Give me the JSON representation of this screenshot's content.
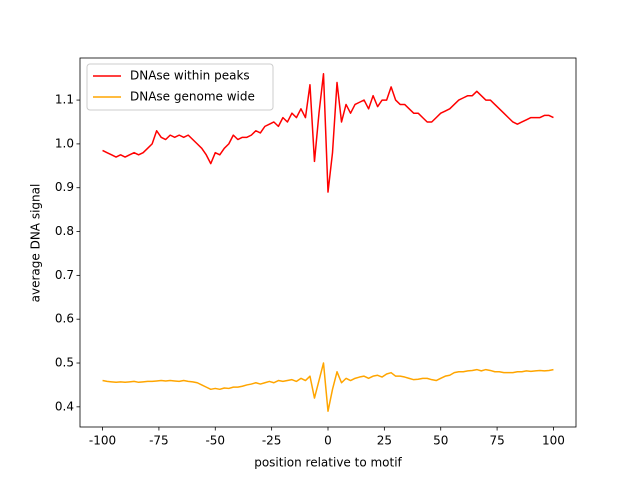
{
  "chart_data": {
    "type": "line",
    "xlabel": "position relative to motif",
    "ylabel": "average DNA signal",
    "x": [
      -100,
      -98,
      -96,
      -94,
      -92,
      -90,
      -88,
      -86,
      -84,
      -82,
      -80,
      -78,
      -76,
      -74,
      -72,
      -70,
      -68,
      -66,
      -64,
      -62,
      -60,
      -58,
      -56,
      -54,
      -52,
      -50,
      -48,
      -46,
      -44,
      -42,
      -40,
      -38,
      -36,
      -34,
      -32,
      -30,
      -28,
      -26,
      -24,
      -22,
      -20,
      -18,
      -16,
      -14,
      -12,
      -10,
      -8,
      -6,
      -4,
      -2,
      0,
      2,
      4,
      6,
      8,
      10,
      12,
      14,
      16,
      18,
      20,
      22,
      24,
      26,
      28,
      30,
      32,
      34,
      36,
      38,
      40,
      42,
      44,
      46,
      48,
      50,
      52,
      54,
      56,
      58,
      60,
      62,
      64,
      66,
      68,
      70,
      72,
      74,
      76,
      78,
      80,
      82,
      84,
      86,
      88,
      90,
      92,
      94,
      96,
      98,
      100
    ],
    "series": [
      {
        "name": "DNAse within peaks",
        "color": "#ff0000",
        "values": [
          0.985,
          0.98,
          0.975,
          0.97,
          0.975,
          0.97,
          0.975,
          0.98,
          0.975,
          0.98,
          0.99,
          1.0,
          1.03,
          1.015,
          1.01,
          1.02,
          1.015,
          1.02,
          1.015,
          1.02,
          1.01,
          1.0,
          0.99,
          0.975,
          0.955,
          0.98,
          0.975,
          0.99,
          1.0,
          1.02,
          1.01,
          1.015,
          1.015,
          1.02,
          1.03,
          1.025,
          1.04,
          1.045,
          1.05,
          1.04,
          1.06,
          1.05,
          1.07,
          1.06,
          1.08,
          1.06,
          1.135,
          0.96,
          1.07,
          1.16,
          0.89,
          0.98,
          1.14,
          1.05,
          1.09,
          1.07,
          1.09,
          1.095,
          1.1,
          1.08,
          1.11,
          1.085,
          1.1,
          1.1,
          1.13,
          1.1,
          1.09,
          1.09,
          1.08,
          1.07,
          1.07,
          1.06,
          1.05,
          1.05,
          1.06,
          1.07,
          1.075,
          1.08,
          1.09,
          1.1,
          1.105,
          1.11,
          1.11,
          1.12,
          1.11,
          1.1,
          1.1,
          1.09,
          1.08,
          1.07,
          1.06,
          1.05,
          1.045,
          1.05,
          1.055,
          1.06,
          1.06,
          1.06,
          1.065,
          1.065,
          1.06
        ]
      },
      {
        "name": "DNAse genome wide",
        "color": "#ffa500",
        "values": [
          0.46,
          0.458,
          0.457,
          0.456,
          0.457,
          0.456,
          0.457,
          0.458,
          0.456,
          0.457,
          0.458,
          0.458,
          0.459,
          0.46,
          0.459,
          0.46,
          0.459,
          0.458,
          0.46,
          0.458,
          0.457,
          0.455,
          0.45,
          0.445,
          0.44,
          0.442,
          0.44,
          0.443,
          0.442,
          0.445,
          0.445,
          0.447,
          0.45,
          0.452,
          0.455,
          0.452,
          0.455,
          0.458,
          0.455,
          0.46,
          0.458,
          0.46,
          0.462,
          0.458,
          0.465,
          0.46,
          0.47,
          0.42,
          0.46,
          0.5,
          0.39,
          0.44,
          0.48,
          0.455,
          0.465,
          0.46,
          0.465,
          0.468,
          0.47,
          0.465,
          0.47,
          0.472,
          0.468,
          0.475,
          0.478,
          0.47,
          0.47,
          0.468,
          0.465,
          0.462,
          0.463,
          0.465,
          0.465,
          0.462,
          0.46,
          0.465,
          0.47,
          0.472,
          0.478,
          0.48,
          0.48,
          0.482,
          0.483,
          0.485,
          0.482,
          0.485,
          0.483,
          0.48,
          0.48,
          0.478,
          0.478,
          0.478,
          0.48,
          0.48,
          0.482,
          0.481,
          0.482,
          0.483,
          0.482,
          0.483,
          0.485
        ]
      }
    ],
    "xlim": [
      -110,
      110
    ],
    "ylim": [
      0.354,
      1.196
    ],
    "xticks": [
      -100,
      -75,
      -50,
      -25,
      0,
      25,
      50,
      75,
      100
    ],
    "yticks": [
      0.4,
      0.5,
      0.6,
      0.7,
      0.8,
      0.9,
      {
        "value": 1,
        "label": "1.0"
      },
      1.1
    ],
    "legend": "upper left"
  }
}
